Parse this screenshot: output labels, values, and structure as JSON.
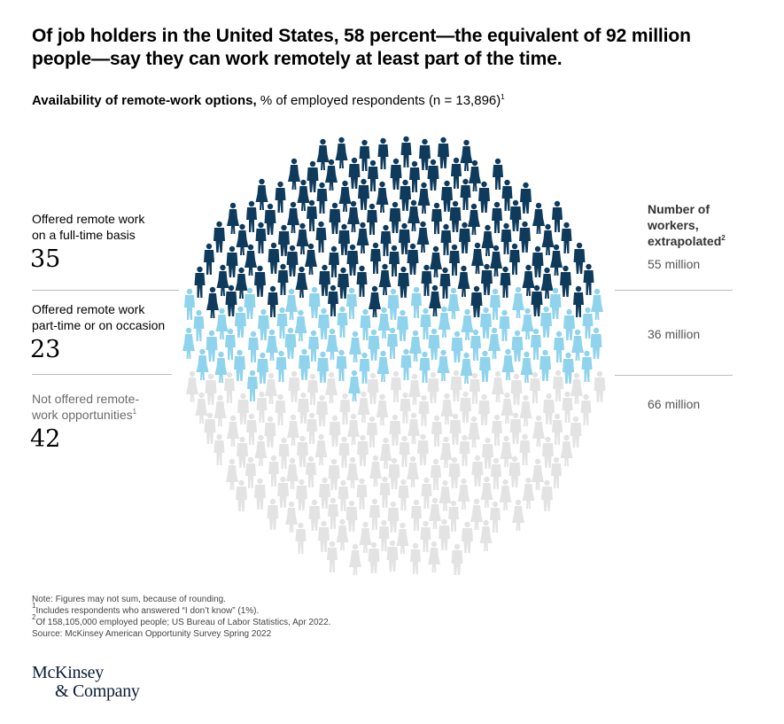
{
  "header": {
    "title": "Of job holders in the United States, 58 percent—the equivalent of 92 million people—say they can work remotely at least part of the time.",
    "subtitle_bold": "Availability of remote-work options,",
    "subtitle_rest": " % of employed respondents (n = 13,896)",
    "subtitle_sup": "1"
  },
  "chart_data": {
    "type": "pictogram",
    "title": "Availability of remote-work options",
    "unit": "% of employed respondents",
    "categories": [
      "Offered remote work on a full-time basis",
      "Offered remote work part-time or on occasion",
      "Not offered remote-work opportunities"
    ],
    "values": [
      35,
      23,
      42
    ],
    "workers_millions": [
      55,
      36,
      66
    ],
    "colors": [
      "#0e3a5c",
      "#8fd3ec",
      "#e3e3e3"
    ]
  },
  "segments": [
    {
      "label_line1": "Offered remote work",
      "label_line2": "on a full-time basis",
      "label_sup": "",
      "value": "35",
      "count": "55 million"
    },
    {
      "label_line1": "Offered remote work",
      "label_line2": "part-time or on occasion",
      "label_sup": "",
      "value": "23",
      "count": "36 million"
    },
    {
      "label_line1": "Not offered remote-",
      "label_line2": "work opportunities",
      "label_sup": "1",
      "value": "42",
      "count": "66 million"
    }
  ],
  "right_column": {
    "heading_line1": "Number of",
    "heading_line2": "workers,",
    "heading_line3": "extrapolated",
    "heading_sup": "2"
  },
  "notes": {
    "note": "Note: Figures may not sum, because of rounding.",
    "fn1_sup": "1",
    "fn1": "Includes respondents who answered “I don’t know” (1%).",
    "fn2_sup": "2",
    "fn2": "Of 158,105,000 employed people; US Bureau of Labor Statistics, Apr 2022.",
    "source": "Source: McKinsey American Opportunity Survey Spring 2022"
  },
  "logo": {
    "line1": "McKinsey",
    "line2": "& Company"
  }
}
